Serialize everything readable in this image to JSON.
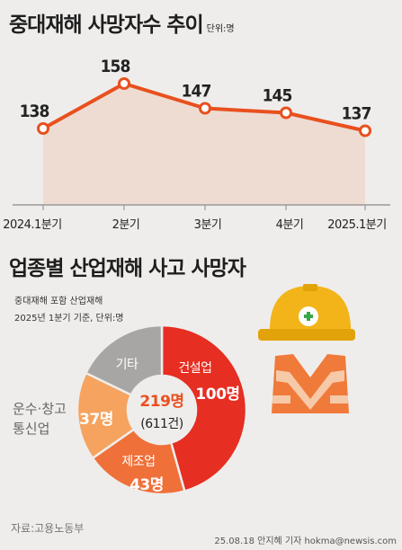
{
  "line_title": "중대재해 사망자수 추이",
  "line_unit": "단위:명",
  "donut_title": "업종별 산업재해 사고 사망자",
  "donut_sub1": "중대재해 포함 산업재해",
  "donut_sub2": "2025년 1분기 기준, 단위:명",
  "donut_center_value": "219명",
  "donut_center_sub": "(611건)",
  "side_label_line1": "운수·창고",
  "side_label_line2": "통신업",
  "source": "자료:고용노동부",
  "credit": "25.08.18 안지혜 기자 hokma@newsis.com",
  "colors": {
    "line": "#e8501e",
    "area": "#eedcd3",
    "construction": "#e62e22",
    "manufacturing": "#f0703a",
    "transport": "#f5a35f",
    "other": "#a8a6a4"
  },
  "chart_data": [
    {
      "type": "line",
      "title": "중대재해 사망자수 추이",
      "categories": [
        "2024.1분기",
        "2분기",
        "3분기",
        "4분기",
        "2025.1분기"
      ],
      "values": [
        138,
        158,
        147,
        145,
        137
      ],
      "ylim": [
        0,
        170
      ]
    },
    {
      "type": "pie",
      "title": "업종별 산업재해 사고 사망자",
      "categories": [
        "건설업",
        "제조업",
        "운수·창고 통신업",
        "기타"
      ],
      "values": [
        100,
        43,
        37,
        39
      ],
      "value_labels": [
        "100명",
        "43명",
        "37명",
        ""
      ],
      "total": 219
    }
  ]
}
